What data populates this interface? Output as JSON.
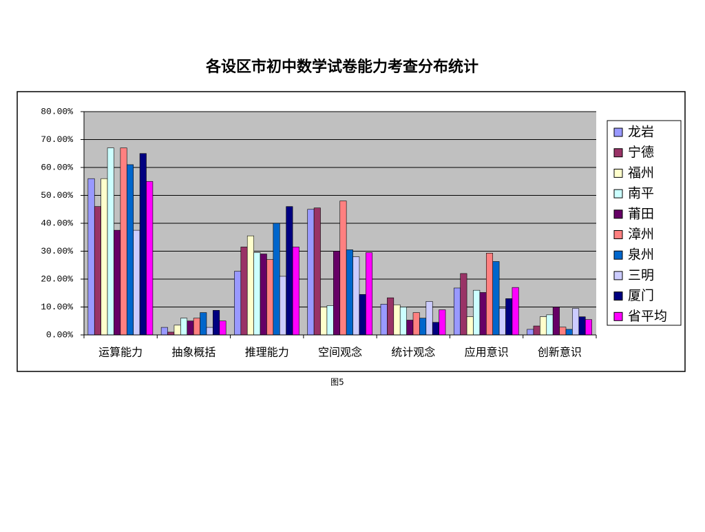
{
  "chart_data": {
    "type": "bar",
    "title": "各设区市初中数学试卷能力考查分布统计",
    "caption": "图5",
    "categories": [
      "运算能力",
      "抽象概括",
      "推理能力",
      "空间观念",
      "统计观念",
      "应用意识",
      "创新意识"
    ],
    "series": [
      {
        "name": "龙岩",
        "color": "#9999ff",
        "values": [
          56,
          2.7,
          22.8,
          45,
          11,
          16.8,
          2
        ]
      },
      {
        "name": "宁德",
        "color": "#993366",
        "values": [
          46,
          1,
          31.5,
          45.5,
          13.3,
          22,
          3.2
        ]
      },
      {
        "name": "福州",
        "color": "#ffffcc",
        "values": [
          56,
          3.5,
          35.5,
          10,
          10.8,
          6.5,
          6.5
        ]
      },
      {
        "name": "南平",
        "color": "#ccffff",
        "values": [
          67,
          6,
          29.5,
          10.5,
          10,
          16,
          7.2
        ]
      },
      {
        "name": "莆田",
        "color": "#660066",
        "values": [
          37.5,
          5,
          29,
          30,
          5.3,
          15.2,
          10
        ]
      },
      {
        "name": "漳州",
        "color": "#ff8080",
        "values": [
          67,
          6,
          27,
          48,
          8,
          29.3,
          2.8
        ]
      },
      {
        "name": "泉州",
        "color": "#0066cc",
        "values": [
          61,
          8,
          40,
          30.5,
          6,
          26.3,
          2
        ]
      },
      {
        "name": "三明",
        "color": "#ccccff",
        "values": [
          37.5,
          2.7,
          21,
          28,
          12,
          9.5,
          9.5
        ]
      },
      {
        "name": "厦门",
        "color": "#000080",
        "values": [
          65,
          8.8,
          46,
          14.5,
          4.5,
          13,
          6.5
        ]
      },
      {
        "name": "省平均",
        "color": "#ff00ff",
        "values": [
          55,
          5,
          31.5,
          29.5,
          9,
          17,
          5.5
        ]
      }
    ],
    "ylim": [
      0,
      80
    ],
    "yticks": [
      {
        "value": 0,
        "label": "0.00%"
      },
      {
        "value": 10,
        "label": "10.00%"
      },
      {
        "value": 20,
        "label": "20.00%"
      },
      {
        "value": 30,
        "label": "30.00%"
      },
      {
        "value": 40,
        "label": "40.00%"
      },
      {
        "value": 50,
        "label": "50.00%"
      },
      {
        "value": 60,
        "label": "60.00%"
      },
      {
        "value": 70,
        "label": "70.00%"
      },
      {
        "value": 80,
        "label": "80.00%"
      }
    ],
    "grid": true,
    "legend": "right"
  }
}
